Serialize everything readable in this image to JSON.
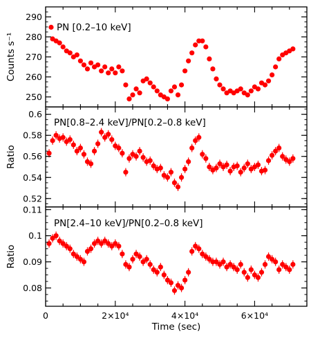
{
  "chart_data": {
    "type": "scatter",
    "layout": "three stacked panels sharing x axis",
    "xlabel": "Time (sec)",
    "xlim": [
      0,
      75000
    ],
    "x_ticks": [
      {
        "value": 0,
        "label": "0"
      },
      {
        "value": 20000,
        "label": "2×10⁴"
      },
      {
        "value": 40000,
        "label": "4×10⁴"
      },
      {
        "value": 60000,
        "label": "6×10⁴"
      }
    ],
    "marker_color": "#ff0000",
    "error_bars": true,
    "panels": [
      {
        "id": "rate",
        "label": "PN [0.2–10 keV]",
        "ylabel": "Counts s⁻¹",
        "ylim": [
          245,
          295
        ],
        "y_ticks": [
          "250",
          "260",
          "270",
          "280",
          "290"
        ],
        "y_tick_values": [
          250,
          260,
          270,
          280,
          290
        ],
        "x": [
          2000,
          3000,
          4000,
          5000,
          6000,
          7000,
          8000,
          9000,
          10000,
          11000,
          12000,
          13000,
          14000,
          15000,
          16000,
          17000,
          18000,
          19000,
          20000,
          21000,
          22000,
          23000,
          24000,
          25000,
          26000,
          27000,
          28000,
          29000,
          30000,
          31000,
          32000,
          33000,
          34000,
          35000,
          36000,
          37000,
          38000,
          39000,
          40000,
          41000,
          42000,
          43000,
          44000,
          45000,
          46000,
          47000,
          48000,
          49000,
          50000,
          51000,
          52000,
          53000,
          54000,
          55000,
          56000,
          57000,
          58000,
          59000,
          60000,
          61000,
          62000,
          63000,
          64000,
          65000,
          66000,
          67000,
          68000,
          69000,
          70000,
          71000
        ],
        "y": [
          279,
          278,
          277,
          275,
          273,
          272,
          270,
          271,
          268,
          266,
          264,
          267,
          265,
          266,
          263,
          265,
          262,
          264,
          262,
          265,
          263,
          256,
          249,
          251,
          254,
          252,
          258,
          259,
          257,
          255,
          253,
          251,
          250,
          249,
          253,
          255,
          251,
          256,
          263,
          268,
          272,
          276,
          278,
          278,
          275,
          269,
          264,
          259,
          256,
          254,
          252,
          253,
          252,
          253,
          254,
          252,
          251,
          253,
          255,
          254,
          257,
          256,
          258,
          261,
          265,
          269,
          271,
          272,
          273,
          274
        ]
      },
      {
        "id": "soft-ratio",
        "label": "PN[0.8–2.4 keV]/PN[0.2–0.8 keV]",
        "ylabel": "Ratio",
        "ylim": [
          0.512,
          0.607
        ],
        "y_ticks": [
          "0.52",
          "0.54",
          "0.56",
          "0.58",
          "0.6"
        ],
        "y_tick_values": [
          0.52,
          0.54,
          0.56,
          0.58,
          0.6
        ],
        "x": [
          1000,
          2000,
          3000,
          4000,
          5000,
          6000,
          7000,
          8000,
          9000,
          10000,
          11000,
          12000,
          13000,
          14000,
          15000,
          16000,
          17000,
          18000,
          19000,
          20000,
          21000,
          22000,
          23000,
          24000,
          25000,
          26000,
          27000,
          28000,
          29000,
          30000,
          31000,
          32000,
          33000,
          34000,
          35000,
          36000,
          37000,
          38000,
          39000,
          40000,
          41000,
          42000,
          43000,
          44000,
          45000,
          46000,
          47000,
          48000,
          49000,
          50000,
          51000,
          52000,
          53000,
          54000,
          55000,
          56000,
          57000,
          58000,
          59000,
          60000,
          61000,
          62000,
          63000,
          64000,
          65000,
          66000,
          67000,
          68000,
          69000,
          70000,
          71000
        ],
        "y": [
          0.563,
          0.575,
          0.58,
          0.577,
          0.578,
          0.574,
          0.576,
          0.571,
          0.565,
          0.568,
          0.562,
          0.555,
          0.553,
          0.565,
          0.572,
          0.583,
          0.578,
          0.581,
          0.576,
          0.57,
          0.568,
          0.563,
          0.545,
          0.558,
          0.562,
          0.56,
          0.565,
          0.559,
          0.555,
          0.556,
          0.551,
          0.548,
          0.549,
          0.542,
          0.54,
          0.545,
          0.535,
          0.531,
          0.54,
          0.548,
          0.555,
          0.568,
          0.575,
          0.578,
          0.562,
          0.558,
          0.55,
          0.547,
          0.549,
          0.553,
          0.55,
          0.552,
          0.546,
          0.55,
          0.551,
          0.545,
          0.549,
          0.553,
          0.548,
          0.55,
          0.552,
          0.546,
          0.547,
          0.556,
          0.561,
          0.565,
          0.568,
          0.56,
          0.557,
          0.555,
          0.558
        ]
      },
      {
        "id": "hard-ratio",
        "label": "PN[2.4–10 keV]/PN[0.2–0.8 keV]",
        "ylabel": "Ratio",
        "ylim": [
          0.073,
          0.111
        ],
        "y_ticks": [
          "0.08",
          "0.09",
          "0.1",
          "0.11"
        ],
        "y_tick_values": [
          0.08,
          0.09,
          0.1,
          0.11
        ],
        "x": [
          1000,
          2000,
          3000,
          4000,
          5000,
          6000,
          7000,
          8000,
          9000,
          10000,
          11000,
          12000,
          13000,
          14000,
          15000,
          16000,
          17000,
          18000,
          19000,
          20000,
          21000,
          22000,
          23000,
          24000,
          25000,
          26000,
          27000,
          28000,
          29000,
          30000,
          31000,
          32000,
          33000,
          34000,
          35000,
          36000,
          37000,
          38000,
          39000,
          40000,
          41000,
          42000,
          43000,
          44000,
          45000,
          46000,
          47000,
          48000,
          49000,
          50000,
          51000,
          52000,
          53000,
          54000,
          55000,
          56000,
          57000,
          58000,
          59000,
          60000,
          61000,
          62000,
          63000,
          64000,
          65000,
          66000,
          67000,
          68000,
          69000,
          70000,
          71000
        ],
        "y": [
          0.097,
          0.099,
          0.1,
          0.098,
          0.097,
          0.096,
          0.095,
          0.093,
          0.092,
          0.091,
          0.09,
          0.094,
          0.095,
          0.097,
          0.098,
          0.097,
          0.098,
          0.097,
          0.096,
          0.097,
          0.096,
          0.093,
          0.089,
          0.088,
          0.091,
          0.093,
          0.092,
          0.09,
          0.091,
          0.089,
          0.087,
          0.086,
          0.088,
          0.085,
          0.083,
          0.082,
          0.079,
          0.081,
          0.08,
          0.083,
          0.086,
          0.094,
          0.096,
          0.095,
          0.093,
          0.092,
          0.091,
          0.09,
          0.09,
          0.089,
          0.09,
          0.088,
          0.089,
          0.088,
          0.087,
          0.089,
          0.086,
          0.084,
          0.087,
          0.085,
          0.084,
          0.086,
          0.089,
          0.092,
          0.091,
          0.09,
          0.087,
          0.089,
          0.088,
          0.087,
          0.089
        ]
      }
    ]
  }
}
